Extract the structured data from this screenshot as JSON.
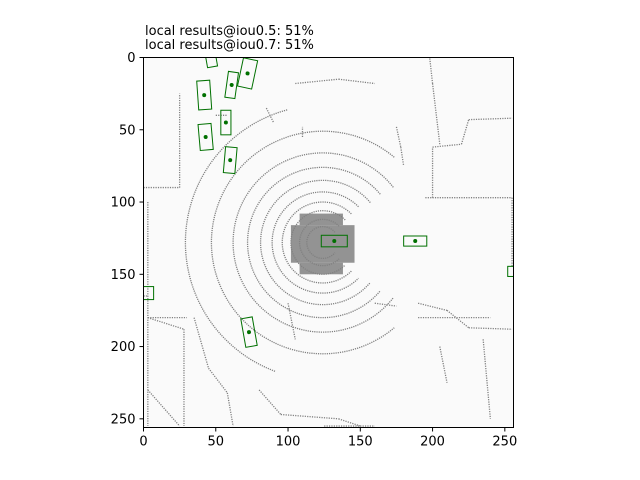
{
  "chart_data": {
    "type": "scatter",
    "title_lines": [
      "local results@iou0.5: 51%",
      "local results@iou0.7: 51%"
    ],
    "xlabel": "",
    "ylabel": "",
    "xlim": [
      0,
      256
    ],
    "ylim": [
      256,
      0
    ],
    "x_ticks": [
      0,
      50,
      100,
      150,
      200,
      250
    ],
    "y_ticks": [
      0,
      50,
      100,
      150,
      200,
      250
    ],
    "grid": false,
    "colors": {
      "background": "#fafafa",
      "lidar_points": "#808080",
      "detections": "#007000"
    },
    "detections": [
      {
        "cx": 47,
        "cy": 2,
        "w": 7,
        "l": 9,
        "angle": -10,
        "center_marker": false
      },
      {
        "cx": 72,
        "cy": 11,
        "w": 10,
        "l": 20,
        "angle": 12,
        "center_marker": true
      },
      {
        "cx": 61,
        "cy": 19,
        "w": 7,
        "l": 18,
        "angle": 8,
        "center_marker": true
      },
      {
        "cx": 42,
        "cy": 26,
        "w": 9,
        "l": 20,
        "angle": -4,
        "center_marker": true
      },
      {
        "cx": 57,
        "cy": 45,
        "w": 7,
        "l": 17,
        "angle": 0,
        "center_marker": true
      },
      {
        "cx": 43,
        "cy": 55,
        "w": 9,
        "l": 18,
        "angle": -5,
        "center_marker": true
      },
      {
        "cx": 60,
        "cy": 71,
        "w": 8,
        "l": 18,
        "angle": 5,
        "center_marker": true
      },
      {
        "cx": 132,
        "cy": 127,
        "w": 18,
        "l": 8,
        "angle": 0,
        "center_marker": true
      },
      {
        "cx": 188,
        "cy": 127,
        "w": 16,
        "l": 7,
        "angle": 0,
        "center_marker": true
      },
      {
        "cx": 255,
        "cy": 148,
        "w": 6,
        "l": 7,
        "angle": 0,
        "center_marker": false
      },
      {
        "cx": 2,
        "cy": 163,
        "w": 10,
        "l": 9,
        "angle": 0,
        "center_marker": false
      },
      {
        "cx": 73,
        "cy": 190,
        "w": 8,
        "l": 20,
        "angle": -10,
        "center_marker": true
      }
    ],
    "lidar_rings": [
      {
        "r": 11,
        "start": 40,
        "end": 320,
        "dash": "1.2 1.0"
      },
      {
        "r": 16,
        "start": 45,
        "end": 315,
        "dash": "1.2 1.0"
      },
      {
        "r": 22,
        "start": 45,
        "end": 315,
        "dash": "1.2 1.0"
      },
      {
        "r": 28,
        "start": 45,
        "end": 315,
        "dash": "1.2 1.0"
      },
      {
        "r": 35,
        "start": 45,
        "end": 315,
        "dash": "1.2 1.0"
      },
      {
        "r": 43,
        "start": 40,
        "end": 320,
        "dash": "1.2 1.0"
      },
      {
        "r": 52,
        "start": 40,
        "end": 320,
        "dash": "1.2 1.0"
      },
      {
        "r": 62,
        "start": 38,
        "end": 322,
        "dash": "1.2 1.0"
      },
      {
        "r": 77,
        "start": 50,
        "end": 310,
        "dash": "1.2 1.0"
      },
      {
        "r": 95,
        "start": 105,
        "end": 250,
        "dash": "1.2 1.0"
      }
    ],
    "lidar_segments": [
      {
        "x1": 0,
        "y1": 90,
        "x2": 25,
        "y2": 90
      },
      {
        "x1": 25,
        "y1": 90,
        "x2": 25,
        "y2": 25
      },
      {
        "x1": 3,
        "y1": 100,
        "x2": 3,
        "y2": 255
      },
      {
        "x1": 3,
        "y1": 180,
        "x2": 30,
        "y2": 180
      },
      {
        "x1": 3,
        "y1": 230,
        "x2": 25,
        "y2": 255
      },
      {
        "x1": 3,
        "y1": 180,
        "x2": 28,
        "y2": 188
      },
      {
        "x1": 28,
        "y1": 188,
        "x2": 28,
        "y2": 255
      },
      {
        "x1": 0,
        "y1": 165,
        "x2": 3,
        "y2": 165
      },
      {
        "x1": 35,
        "y1": 180,
        "x2": 45,
        "y2": 215
      },
      {
        "x1": 45,
        "y1": 215,
        "x2": 58,
        "y2": 232
      },
      {
        "x1": 58,
        "y1": 232,
        "x2": 62,
        "y2": 255
      },
      {
        "x1": 80,
        "y1": 230,
        "x2": 95,
        "y2": 247
      },
      {
        "x1": 95,
        "y1": 247,
        "x2": 135,
        "y2": 250
      },
      {
        "x1": 135,
        "y1": 250,
        "x2": 150,
        "y2": 255
      },
      {
        "x1": 125,
        "y1": 255,
        "x2": 160,
        "y2": 255
      },
      {
        "x1": 190,
        "y1": 170,
        "x2": 210,
        "y2": 175
      },
      {
        "x1": 210,
        "y1": 175,
        "x2": 225,
        "y2": 187
      },
      {
        "x1": 225,
        "y1": 187,
        "x2": 255,
        "y2": 188
      },
      {
        "x1": 190,
        "y1": 180,
        "x2": 240,
        "y2": 180
      },
      {
        "x1": 195,
        "y1": 97,
        "x2": 255,
        "y2": 97
      },
      {
        "x1": 255,
        "y1": 97,
        "x2": 255,
        "y2": 145
      },
      {
        "x1": 200,
        "y1": 97,
        "x2": 200,
        "y2": 62
      },
      {
        "x1": 200,
        "y1": 62,
        "x2": 220,
        "y2": 60
      },
      {
        "x1": 220,
        "y1": 60,
        "x2": 225,
        "y2": 43
      },
      {
        "x1": 225,
        "y1": 43,
        "x2": 255,
        "y2": 42
      },
      {
        "x1": 205,
        "y1": 60,
        "x2": 200,
        "y2": 18
      },
      {
        "x1": 200,
        "y1": 18,
        "x2": 198,
        "y2": 0
      },
      {
        "x1": 175,
        "y1": 48,
        "x2": 178,
        "y2": 62
      },
      {
        "x1": 178,
        "y1": 62,
        "x2": 180,
        "y2": 75
      },
      {
        "x1": 105,
        "y1": 18,
        "x2": 135,
        "y2": 15
      },
      {
        "x1": 135,
        "y1": 15,
        "x2": 160,
        "y2": 18
      },
      {
        "x1": 110,
        "y1": 55,
        "x2": 110,
        "y2": 48
      },
      {
        "x1": 85,
        "y1": 35,
        "x2": 90,
        "y2": 45
      },
      {
        "x1": 235,
        "y1": 195,
        "x2": 240,
        "y2": 250
      },
      {
        "x1": 205,
        "y1": 200,
        "x2": 210,
        "y2": 225
      },
      {
        "x1": 100,
        "y1": 170,
        "x2": 105,
        "y2": 195
      },
      {
        "x1": 160,
        "y1": 170,
        "x2": 175,
        "y2": 172
      },
      {
        "x1": 50,
        "y1": 40,
        "x2": 58,
        "y2": 40
      }
    ],
    "lidar_core": [
      {
        "x": 102,
        "y": 116,
        "w": 44,
        "h": 26
      },
      {
        "x": 108,
        "y": 108,
        "w": 30,
        "h": 8
      },
      {
        "x": 108,
        "y": 142,
        "w": 30,
        "h": 8
      }
    ]
  }
}
